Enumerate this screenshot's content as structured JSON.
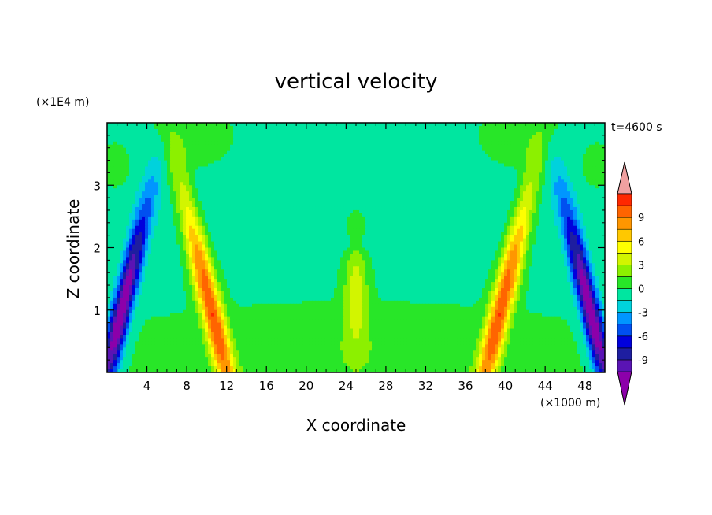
{
  "chart_data": {
    "type": "contour",
    "title": "vertical velocity",
    "xlabel": "X coordinate",
    "ylabel": "Z coordinate",
    "x_unit": "(×1000 m)",
    "y_unit": "(×1E4 m)",
    "time_label": "t=4600 s",
    "xlim": [
      0,
      50
    ],
    "ylim": [
      0,
      4
    ],
    "x_ticks": [
      4,
      8,
      12,
      16,
      20,
      24,
      28,
      32,
      36,
      40,
      44,
      48
    ],
    "y_ticks": [
      1,
      2,
      3
    ],
    "colorbar": {
      "tick_labels": [
        "9",
        "6",
        "3",
        "0",
        "-3",
        "-6",
        "-9"
      ],
      "tick_values": [
        9,
        6,
        3,
        0,
        -3,
        -6,
        -9
      ],
      "levels": [
        -10.5,
        -9,
        -7.5,
        -6,
        -4.5,
        -3,
        -1.5,
        0,
        1.5,
        3,
        4.5,
        6,
        7.5,
        9,
        10.5
      ],
      "colors": [
        "#8c00aa",
        "#5a14b4",
        "#1e1ea0",
        "#0000dc",
        "#0050f0",
        "#0096ff",
        "#00d2dc",
        "#00e6a0",
        "#28e628",
        "#8cf000",
        "#d2f500",
        "#ffff00",
        "#ffc800",
        "#ff9600",
        "#ff6400",
        "#ff2800",
        "#f0a0a0"
      ]
    },
    "features": [
      {
        "kind": "updraft",
        "x": 10.5,
        "z": 1.05,
        "value": 9
      },
      {
        "kind": "updraft",
        "x": 39.5,
        "z": 1.05,
        "value": 9
      },
      {
        "kind": "downdraft",
        "x": 1.5,
        "z": 0.95,
        "value": -10
      },
      {
        "kind": "downdraft",
        "x": 48.5,
        "z": 0.95,
        "value": -10
      },
      {
        "kind": "updraft",
        "x": 25,
        "z": 1.5,
        "value": 3
      }
    ]
  }
}
